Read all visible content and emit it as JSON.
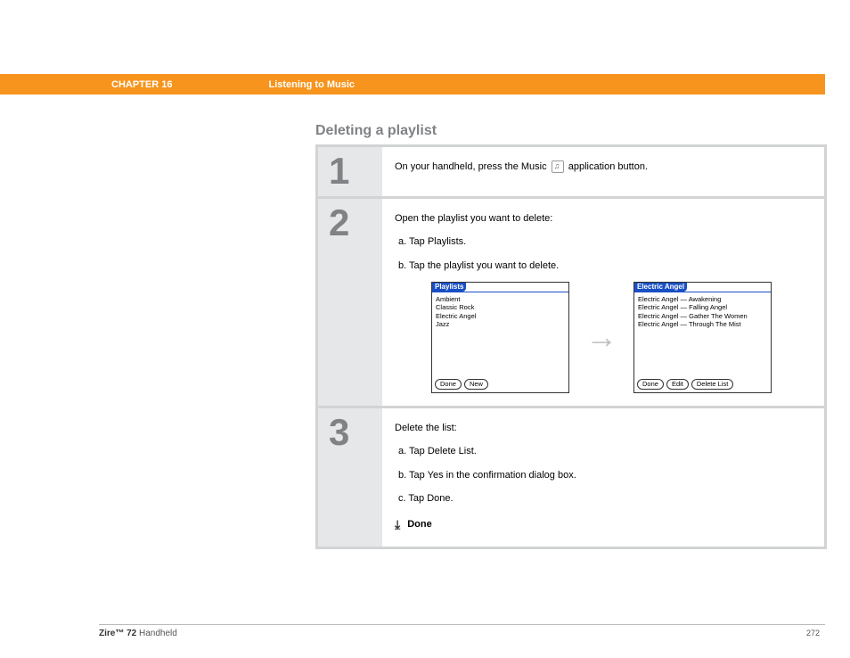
{
  "header": {
    "bar_color": "#f7941d",
    "chapter_label": "CHAPTER 16",
    "chapter_title": "Listening to Music"
  },
  "section_title": "Deleting a playlist",
  "steps": [
    {
      "number": "1",
      "line_before_icon": "On your handheld, press the Music ",
      "line_after_icon": " application button."
    },
    {
      "number": "2",
      "intro": "Open the playlist you want to delete:",
      "sub_a": "a.   Tap Playlists.",
      "sub_b": "b.   Tap the playlist you want to delete.",
      "left_window": {
        "title": "Playlists",
        "items": [
          "Ambient",
          "Classic Rock",
          "Electric Angel",
          "Jazz"
        ],
        "buttons": [
          "Done",
          "New"
        ]
      },
      "right_window": {
        "title": "Electric Angel",
        "items": [
          "Electric Angel — Awakening",
          "Electric Angel — Falling Angel",
          "Electric Angel — Gather The Women",
          "Electric Angel — Through The Mist"
        ],
        "buttons": [
          "Done",
          "Edit",
          "Delete List"
        ]
      }
    },
    {
      "number": "3",
      "intro": "Delete the list:",
      "sub_a": "a.   Tap Delete List.",
      "sub_b": "b.   Tap Yes in the confirmation dialog box.",
      "sub_c": "c.   Tap Done.",
      "done_label": "Done"
    }
  ],
  "footer": {
    "product_bold": "Zire™ 72",
    "product_rest": " Handheld",
    "page_number": "272"
  }
}
